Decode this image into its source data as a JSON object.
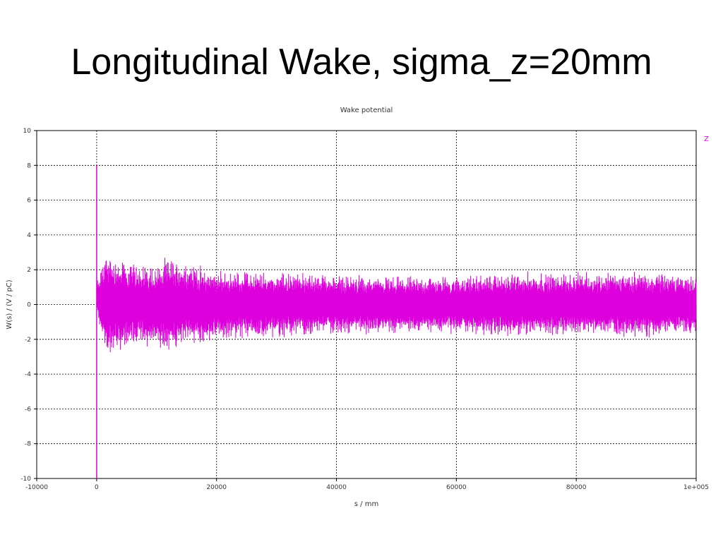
{
  "slide": {
    "title": "Longitudinal Wake, sigma_z=20mm"
  },
  "chart_data": {
    "type": "line",
    "title": "Wake potential",
    "xlabel": "s / mm",
    "ylabel": "W(s) / (V / pC)",
    "xlim": [
      -10000,
      100000
    ],
    "ylim": [
      -10,
      10
    ],
    "x_ticks": [
      -10000,
      0,
      20000,
      40000,
      60000,
      80000,
      100000
    ],
    "x_tick_labels": [
      "-10000",
      "0",
      "20000",
      "40000",
      "60000",
      "80000",
      "1e+005"
    ],
    "y_ticks": [
      10,
      8,
      6,
      4,
      2,
      0,
      -2,
      -4,
      -6,
      -8,
      -10
    ],
    "y_tick_labels": [
      "10",
      "8",
      "6",
      "4",
      "2",
      "0",
      "-2",
      "-4",
      "-6",
      "-8",
      "-10"
    ],
    "grid": true,
    "legend_position": "top-right",
    "series": [
      {
        "name": "Z",
        "color": "#dd00dd",
        "points": [
          {
            "x": 0,
            "y": 8.0
          },
          {
            "x": 0,
            "y": -10.0
          },
          {
            "x": 0,
            "y": 1.5
          },
          {
            "x": 1000,
            "y": 2.8
          },
          {
            "x": 1000,
            "y": -2.5
          },
          {
            "x": 1500,
            "y": 3.2
          },
          {
            "x": 1500,
            "y": -3.1
          },
          {
            "x": 5000,
            "y": 2.6
          },
          {
            "x": 5000,
            "y": -2.6
          },
          {
            "x": 10000,
            "y": 2.4
          },
          {
            "x": 10000,
            "y": -2.5
          },
          {
            "x": 12000,
            "y": 2.9
          },
          {
            "x": 12000,
            "y": -2.8
          },
          {
            "x": 20000,
            "y": 2.0
          },
          {
            "x": 20000,
            "y": -2.2
          },
          {
            "x": 30000,
            "y": 2.0
          },
          {
            "x": 30000,
            "y": -2.0
          },
          {
            "x": 40000,
            "y": 1.8
          },
          {
            "x": 40000,
            "y": -1.8
          },
          {
            "x": 50000,
            "y": 1.7
          },
          {
            "x": 50000,
            "y": -1.7
          },
          {
            "x": 60000,
            "y": 1.7
          },
          {
            "x": 60000,
            "y": -1.8
          },
          {
            "x": 70000,
            "y": 2.0
          },
          {
            "x": 70000,
            "y": -1.9
          },
          {
            "x": 80000,
            "y": 1.9
          },
          {
            "x": 80000,
            "y": -1.9
          },
          {
            "x": 90000,
            "y": 2.0
          },
          {
            "x": 90000,
            "y": -2.0
          },
          {
            "x": 100000,
            "y": 1.8
          },
          {
            "x": 100000,
            "y": -1.8
          }
        ]
      }
    ]
  }
}
